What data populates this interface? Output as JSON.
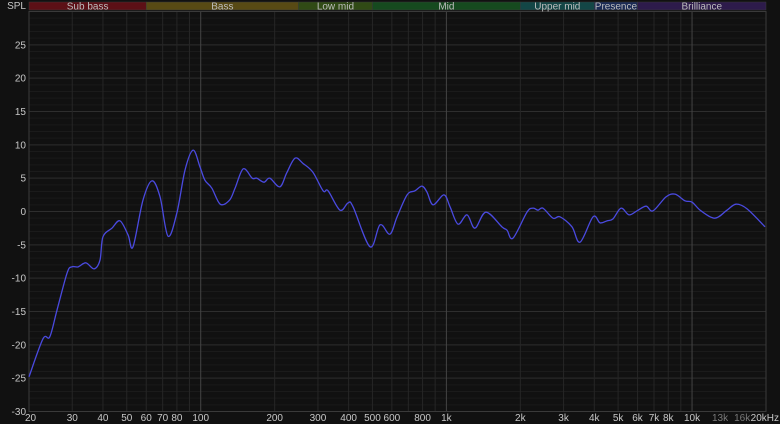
{
  "chart_data": {
    "type": "line",
    "title": "",
    "ylabel": "SPL",
    "xlabel": "",
    "x_scale": "log",
    "xlim": [
      20,
      20000
    ],
    "ylim": [
      -30,
      30
    ],
    "grid": true,
    "background_color": "#111111",
    "line_color": "#4a4ae0",
    "y_ticks": [
      25,
      20,
      15,
      10,
      5,
      0,
      -5,
      -10,
      -15,
      -20,
      -25,
      -30
    ],
    "x_ticks": [
      {
        "value": 20,
        "label": "20"
      },
      {
        "value": 30,
        "label": "30"
      },
      {
        "value": 40,
        "label": "40"
      },
      {
        "value": 50,
        "label": "50"
      },
      {
        "value": 60,
        "label": "60"
      },
      {
        "value": 70,
        "label": "70"
      },
      {
        "value": 80,
        "label": "80"
      },
      {
        "value": 100,
        "label": "100"
      },
      {
        "value": 200,
        "label": "200"
      },
      {
        "value": 300,
        "label": "300"
      },
      {
        "value": 400,
        "label": "400"
      },
      {
        "value": 500,
        "label": "500"
      },
      {
        "value": 600,
        "label": "600"
      },
      {
        "value": 800,
        "label": "800"
      },
      {
        "value": 1000,
        "label": "1k"
      },
      {
        "value": 2000,
        "label": "2k"
      },
      {
        "value": 3000,
        "label": "3k"
      },
      {
        "value": 4000,
        "label": "4k"
      },
      {
        "value": 5000,
        "label": "5k"
      },
      {
        "value": 6000,
        "label": "6k"
      },
      {
        "value": 7000,
        "label": "7k"
      },
      {
        "value": 8000,
        "label": "8k"
      },
      {
        "value": 10000,
        "label": "10k"
      },
      {
        "value": 13000,
        "label": "13k",
        "dim": true
      },
      {
        "value": 16000,
        "label": "16k",
        "dim": true
      },
      {
        "value": 20000,
        "label": "20kHz"
      }
    ],
    "bands": [
      {
        "name": "Sub bass",
        "from": 20,
        "to": 60,
        "color": "#5c1016"
      },
      {
        "name": "Bass",
        "from": 60,
        "to": 250,
        "color": "#584a14"
      },
      {
        "name": "Low mid",
        "from": 250,
        "to": 500,
        "color": "#304a15"
      },
      {
        "name": "Mid",
        "from": 500,
        "to": 2000,
        "color": "#164a1f"
      },
      {
        "name": "Upper mid",
        "from": 2000,
        "to": 4000,
        "color": "#134646"
      },
      {
        "name": "Presence",
        "from": 4000,
        "to": 6000,
        "color": "#1b2b55"
      },
      {
        "name": "Brilliance",
        "from": 6000,
        "to": 20000,
        "color": "#2d1b4b"
      }
    ],
    "series": [
      {
        "x": [
          20,
          22.8,
          24.3,
          26.0,
          28.6,
          29.9,
          31.7,
          34.1,
          36.8,
          38.9,
          40.0,
          43.5,
          46.9,
          50.6,
          53.0,
          58.2,
          63.3,
          68.3,
          73.6,
          80.0,
          86.3,
          93.1,
          99.3,
          104,
          111,
          120,
          131,
          138,
          149,
          162,
          169,
          181,
          191,
          210,
          224,
          242,
          261,
          286,
          315,
          330,
          369,
          398,
          417,
          489,
          537,
          589,
          630,
          692,
          745,
          796,
          834,
          883,
          978,
          1035,
          1115,
          1214,
          1307,
          1449,
          1683,
          1765,
          1867,
          2129,
          2252,
          2361,
          2473,
          2717,
          2899,
          3245,
          3500,
          3955,
          4221,
          4508,
          4768,
          5141,
          5538,
          5972,
          6500,
          6937,
          7834,
          8529,
          9361,
          10000,
          10870,
          12390,
          13870,
          15100,
          16750,
          19820
        ],
        "y": [
          -24.8,
          -19.1,
          -18.8,
          -14.8,
          -9.2,
          -8.3,
          -8.3,
          -7.7,
          -8.6,
          -7.3,
          -3.8,
          -2.5,
          -1.4,
          -3.5,
          -5.3,
          1.7,
          4.6,
          2.2,
          -3.7,
          -0.2,
          6.2,
          9.2,
          6.7,
          4.7,
          3.5,
          1.1,
          1.7,
          3.5,
          6.4,
          5.0,
          5.0,
          4.4,
          5.0,
          3.7,
          5.8,
          8.0,
          7.2,
          5.9,
          3.1,
          3.1,
          0.2,
          1.3,
          0.7,
          -5.3,
          -2.0,
          -3.4,
          -0.8,
          2.5,
          3.1,
          3.8,
          2.9,
          1.0,
          2.5,
          0.7,
          -1.9,
          -0.5,
          -2.5,
          -0.1,
          -2.3,
          -2.8,
          -4.0,
          -0.1,
          0.5,
          0.2,
          0.5,
          -1.0,
          -0.8,
          -2.3,
          -4.6,
          -0.8,
          -1.7,
          -1.4,
          -1.1,
          0.5,
          -0.5,
          0.1,
          0.8,
          0.1,
          2.2,
          2.6,
          1.6,
          1.4,
          0.1,
          -1.0,
          0.2,
          1.1,
          0.4,
          -2.3
        ]
      }
    ]
  }
}
